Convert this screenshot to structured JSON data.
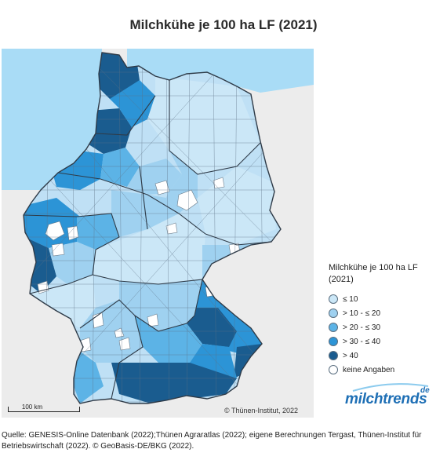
{
  "title": "Milchkühe je 100 ha LF (2021)",
  "legend": {
    "title": "Milchkühe je 100 ha LF (2021)",
    "items": [
      {
        "label": "≤ 10",
        "color": "#cbe7f7"
      },
      {
        "label": "> 10 - ≤ 20",
        "color": "#9fd1f0"
      },
      {
        "label": "> 20 - ≤ 30",
        "color": "#5cb3e6"
      },
      {
        "label": "> 30 - ≤ 40",
        "color": "#2c94d6"
      },
      {
        "label": "> 40",
        "color": "#1a5c8f"
      },
      {
        "label": "keine Angaben",
        "color": "#ffffff"
      }
    ]
  },
  "scale_label": "100 km",
  "copyright": "© Thünen-Institut, 2022",
  "brand": {
    "name": "milchtrends",
    "suffix": "de"
  },
  "source": "Quelle: GENESIS-Online Datenbank (2022);Thünen Agraratlas (2022); eigene Berechnungen Tergast, Thünen-Institut für Betriebswirtschaft (2022). © GeoBasis-DE/BKG (2022).",
  "colors": {
    "sea": "#a9dcf6",
    "land_outside": "#ececec",
    "border": "#2f3b48"
  }
}
